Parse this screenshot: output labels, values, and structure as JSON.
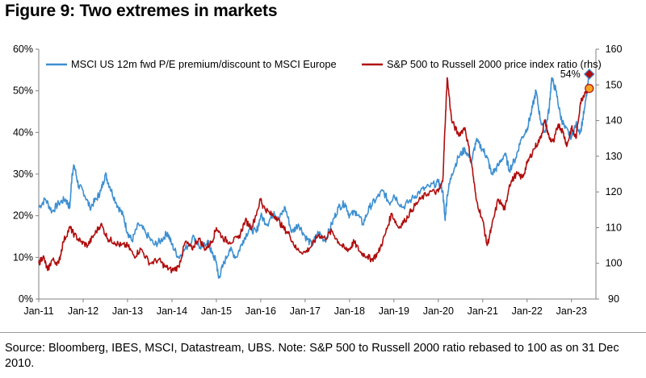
{
  "figure": {
    "title": "Figure 9: Two extremes in markets",
    "source": "Source: Bloomberg, IBES, MSCI, Datastream, UBS. Note: S&P 500 to Russell 2000 ratio rebased to 100 as on 31 Dec 2010."
  },
  "chart_data": {
    "type": "line",
    "title": "Two extremes in markets",
    "x_tick_labels": [
      "Jan-11",
      "Jan-12",
      "Jan-13",
      "Jan-14",
      "Jan-15",
      "Jan-16",
      "Jan-17",
      "Jan-18",
      "Jan-19",
      "Jan-20",
      "Jan-21",
      "Jan-22",
      "Jan-23"
    ],
    "y_left": {
      "ticks": [
        "0%",
        "10%",
        "20%",
        "30%",
        "40%",
        "50%",
        "60%"
      ],
      "lim": [
        0,
        60
      ]
    },
    "y_right": {
      "ticks": [
        "90",
        "100",
        "110",
        "120",
        "130",
        "140",
        "150",
        "160"
      ],
      "lim": [
        90,
        160
      ],
      "label": "rhs"
    },
    "annotation": {
      "text": "54%",
      "x": 2023.4,
      "y": 54
    },
    "series": [
      {
        "name": "MSCI US 12m fwd P/E premium/discount to MSCI Europe",
        "axis": "left",
        "color": "#3d8fd1",
        "points": [
          [
            2011.0,
            22
          ],
          [
            2011.15,
            24
          ],
          [
            2011.3,
            21
          ],
          [
            2011.45,
            23
          ],
          [
            2011.6,
            24
          ],
          [
            2011.7,
            22
          ],
          [
            2011.75,
            30
          ],
          [
            2011.8,
            32
          ],
          [
            2011.9,
            27
          ],
          [
            2012.0,
            26
          ],
          [
            2012.15,
            22
          ],
          [
            2012.3,
            24
          ],
          [
            2012.4,
            26
          ],
          [
            2012.5,
            30
          ],
          [
            2012.6,
            27
          ],
          [
            2012.75,
            23
          ],
          [
            2012.9,
            20
          ],
          [
            2013.0,
            16
          ],
          [
            2013.1,
            14
          ],
          [
            2013.25,
            18
          ],
          [
            2013.4,
            16
          ],
          [
            2013.6,
            13
          ],
          [
            2013.75,
            14
          ],
          [
            2013.9,
            16
          ],
          [
            2014.0,
            13
          ],
          [
            2014.15,
            10
          ],
          [
            2014.3,
            12
          ],
          [
            2014.5,
            15
          ],
          [
            2014.65,
            12
          ],
          [
            2014.8,
            14
          ],
          [
            2014.9,
            11
          ],
          [
            2015.0,
            9
          ],
          [
            2015.05,
            5
          ],
          [
            2015.15,
            8
          ],
          [
            2015.3,
            12
          ],
          [
            2015.45,
            10
          ],
          [
            2015.6,
            14
          ],
          [
            2015.75,
            17
          ],
          [
            2015.9,
            16
          ],
          [
            2016.0,
            20
          ],
          [
            2016.15,
            18
          ],
          [
            2016.3,
            21
          ],
          [
            2016.4,
            19
          ],
          [
            2016.55,
            22
          ],
          [
            2016.7,
            16
          ],
          [
            2016.85,
            18
          ],
          [
            2017.0,
            15
          ],
          [
            2017.15,
            13
          ],
          [
            2017.3,
            16
          ],
          [
            2017.45,
            14
          ],
          [
            2017.6,
            18
          ],
          [
            2017.75,
            22
          ],
          [
            2017.9,
            23
          ],
          [
            2018.0,
            20
          ],
          [
            2018.15,
            21
          ],
          [
            2018.3,
            18
          ],
          [
            2018.45,
            22
          ],
          [
            2018.6,
            24
          ],
          [
            2018.75,
            26
          ],
          [
            2018.9,
            23
          ],
          [
            2019.0,
            25
          ],
          [
            2019.2,
            22
          ],
          [
            2019.4,
            24
          ],
          [
            2019.6,
            26
          ],
          [
            2019.8,
            27
          ],
          [
            2020.0,
            28
          ],
          [
            2020.1,
            26
          ],
          [
            2020.15,
            19
          ],
          [
            2020.2,
            25
          ],
          [
            2020.3,
            30
          ],
          [
            2020.45,
            34
          ],
          [
            2020.6,
            36
          ],
          [
            2020.75,
            33
          ],
          [
            2020.85,
            38
          ],
          [
            2021.0,
            36
          ],
          [
            2021.1,
            34
          ],
          [
            2021.2,
            30
          ],
          [
            2021.35,
            32
          ],
          [
            2021.5,
            35
          ],
          [
            2021.6,
            31
          ],
          [
            2021.75,
            34
          ],
          [
            2021.85,
            38
          ],
          [
            2022.0,
            41
          ],
          [
            2022.1,
            45
          ],
          [
            2022.2,
            50
          ],
          [
            2022.3,
            43
          ],
          [
            2022.4,
            40
          ],
          [
            2022.5,
            46
          ],
          [
            2022.55,
            53
          ],
          [
            2022.65,
            50
          ],
          [
            2022.75,
            44
          ],
          [
            2022.85,
            41
          ],
          [
            2023.0,
            39
          ],
          [
            2023.1,
            42
          ],
          [
            2023.2,
            40
          ],
          [
            2023.3,
            46
          ],
          [
            2023.4,
            54
          ]
        ]
      },
      {
        "name": "S&P 500 to Russell 2000 price index ratio (rhs)",
        "axis": "right",
        "color": "#b00d0d",
        "points": [
          [
            2011.0,
            100
          ],
          [
            2011.1,
            102
          ],
          [
            2011.2,
            98
          ],
          [
            2011.3,
            101
          ],
          [
            2011.45,
            100
          ],
          [
            2011.55,
            106
          ],
          [
            2011.7,
            110
          ],
          [
            2011.8,
            108
          ],
          [
            2011.95,
            106
          ],
          [
            2012.1,
            105
          ],
          [
            2012.25,
            108
          ],
          [
            2012.4,
            111
          ],
          [
            2012.55,
            107
          ],
          [
            2012.7,
            106
          ],
          [
            2012.85,
            105
          ],
          [
            2013.0,
            105
          ],
          [
            2013.15,
            102
          ],
          [
            2013.3,
            104
          ],
          [
            2013.5,
            100
          ],
          [
            2013.7,
            101
          ],
          [
            2013.85,
            99
          ],
          [
            2014.0,
            98
          ],
          [
            2014.15,
            99
          ],
          [
            2014.3,
            106
          ],
          [
            2014.45,
            104
          ],
          [
            2014.6,
            107
          ],
          [
            2014.75,
            104
          ],
          [
            2014.9,
            106
          ],
          [
            2015.0,
            110
          ],
          [
            2015.15,
            107
          ],
          [
            2015.3,
            106
          ],
          [
            2015.5,
            107
          ],
          [
            2015.65,
            112
          ],
          [
            2015.8,
            110
          ],
          [
            2016.0,
            118
          ],
          [
            2016.05,
            116
          ],
          [
            2016.2,
            114
          ],
          [
            2016.35,
            113
          ],
          [
            2016.5,
            110
          ],
          [
            2016.65,
            108
          ],
          [
            2016.8,
            104
          ],
          [
            2017.0,
            103
          ],
          [
            2017.15,
            105
          ],
          [
            2017.3,
            108
          ],
          [
            2017.45,
            107
          ],
          [
            2017.6,
            109
          ],
          [
            2017.75,
            106
          ],
          [
            2017.9,
            104
          ],
          [
            2018.0,
            104
          ],
          [
            2018.1,
            106
          ],
          [
            2018.25,
            103
          ],
          [
            2018.4,
            102
          ],
          [
            2018.5,
            101
          ],
          [
            2018.65,
            103
          ],
          [
            2018.8,
            108
          ],
          [
            2018.95,
            114
          ],
          [
            2019.1,
            110
          ],
          [
            2019.25,
            112
          ],
          [
            2019.4,
            115
          ],
          [
            2019.6,
            118
          ],
          [
            2019.8,
            120
          ],
          [
            2020.0,
            120
          ],
          [
            2020.1,
            123
          ],
          [
            2020.15,
            138
          ],
          [
            2020.2,
            152
          ],
          [
            2020.3,
            140
          ],
          [
            2020.45,
            136
          ],
          [
            2020.6,
            138
          ],
          [
            2020.75,
            128
          ],
          [
            2020.85,
            118
          ],
          [
            2021.0,
            112
          ],
          [
            2021.1,
            105
          ],
          [
            2021.2,
            110
          ],
          [
            2021.35,
            118
          ],
          [
            2021.5,
            115
          ],
          [
            2021.6,
            122
          ],
          [
            2021.75,
            125
          ],
          [
            2021.9,
            124
          ],
          [
            2022.0,
            128
          ],
          [
            2022.15,
            132
          ],
          [
            2022.3,
            135
          ],
          [
            2022.4,
            140
          ],
          [
            2022.5,
            135
          ],
          [
            2022.6,
            134
          ],
          [
            2022.7,
            139
          ],
          [
            2022.8,
            137
          ],
          [
            2022.9,
            133
          ],
          [
            2023.0,
            138
          ],
          [
            2023.1,
            135
          ],
          [
            2023.2,
            145
          ],
          [
            2023.3,
            148
          ],
          [
            2023.4,
            149
          ]
        ]
      }
    ]
  }
}
